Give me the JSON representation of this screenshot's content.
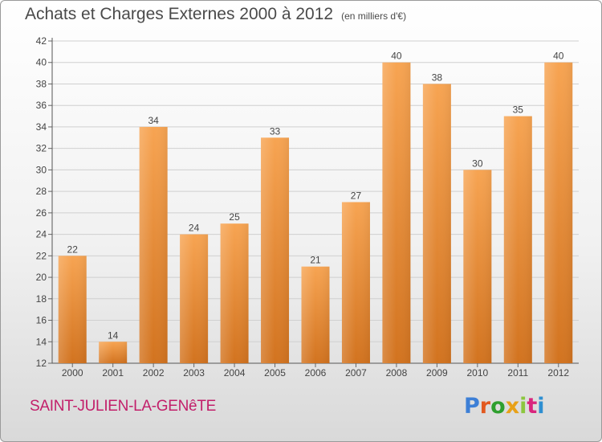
{
  "title": {
    "main": "Achats et Charges Externes 2000 à 2012",
    "unit": "(en milliers d'€)"
  },
  "commune": "SAINT-JULIEN-LA-GENêTE",
  "logo": {
    "text": "Proxiti",
    "letter_colors": [
      "#3d7fd6",
      "#e2591f",
      "#2e9f2e",
      "#e8a118",
      "#8cc63f",
      "#d9267d",
      "#2f8fd1"
    ]
  },
  "colors": {
    "bar_top": "#f7a452",
    "bar_bottom": "#d2731f",
    "text": "#444444",
    "grid": "#d0d0d0"
  },
  "chart_data": {
    "type": "bar",
    "title": "Achats et Charges Externes 2000 à 2012",
    "subtitle": "(en milliers d'€)",
    "xlabel": "",
    "ylabel": "",
    "categories": [
      "2000",
      "2001",
      "2002",
      "2003",
      "2004",
      "2005",
      "2006",
      "2007",
      "2008",
      "2009",
      "2010",
      "2011",
      "2012"
    ],
    "values": [
      22,
      14,
      34,
      24,
      25,
      33,
      21,
      27,
      40,
      38,
      30,
      35,
      40
    ],
    "ylim": [
      12,
      42
    ],
    "yticks": [
      12,
      14,
      16,
      18,
      20,
      22,
      24,
      26,
      28,
      30,
      32,
      34,
      36,
      38,
      40,
      42
    ],
    "grid": true,
    "data_labels": true
  }
}
